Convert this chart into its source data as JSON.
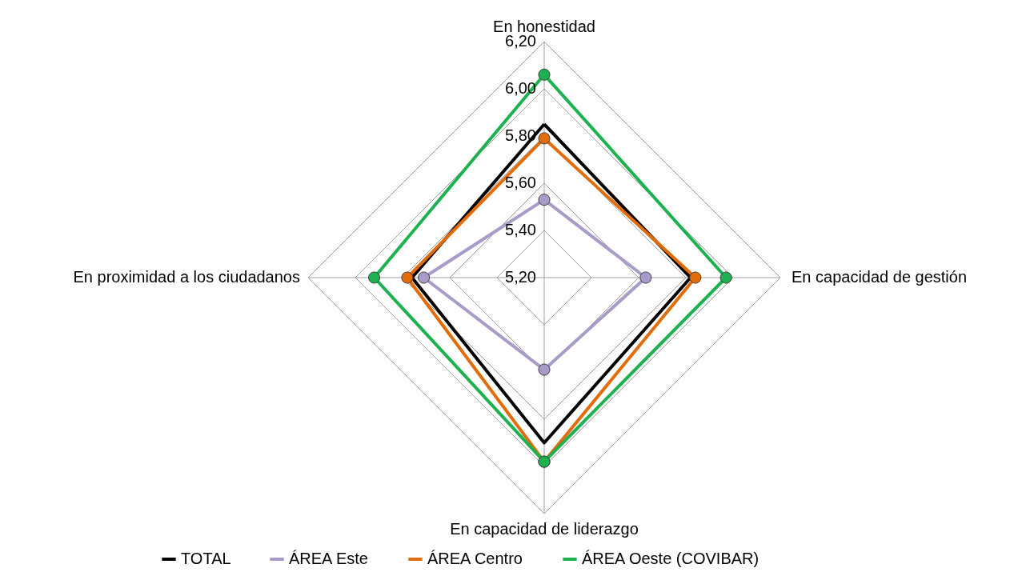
{
  "chart_data": {
    "type": "radar",
    "categories": [
      "En honestidad",
      "En capacidad de gestión",
      "En capacidad de liderazgo",
      "En proximidad a los ciudadanos"
    ],
    "series": [
      {
        "name": "TOTAL",
        "color": "#000000",
        "marker": "none",
        "values": [
          5.85,
          5.82,
          5.9,
          5.76
        ]
      },
      {
        "name": "ÁREA Este",
        "color": "#a99bc9",
        "values": [
          5.53,
          5.63,
          5.59,
          5.71
        ]
      },
      {
        "name": "ÁREA Centro",
        "color": "#e36c0a",
        "values": [
          5.79,
          5.84,
          5.98,
          5.78
        ]
      },
      {
        "name": "ÁREA Oeste (COVIBAR)",
        "color": "#1eb14f",
        "values": [
          6.06,
          5.97,
          5.98,
          5.92
        ]
      }
    ],
    "ylim": [
      5.2,
      6.2
    ],
    "yticks": [
      {
        "value": 5.2,
        "label": "5,20"
      },
      {
        "value": 5.4,
        "label": "5,40"
      },
      {
        "value": 5.6,
        "label": "5,60"
      },
      {
        "value": 5.8,
        "label": "5,80"
      },
      {
        "value": 6.0,
        "label": "6,00"
      },
      {
        "value": 6.2,
        "label": "6,20"
      }
    ],
    "grid": true,
    "legend": "bottom",
    "marker": "circle",
    "line_style": "solid"
  }
}
